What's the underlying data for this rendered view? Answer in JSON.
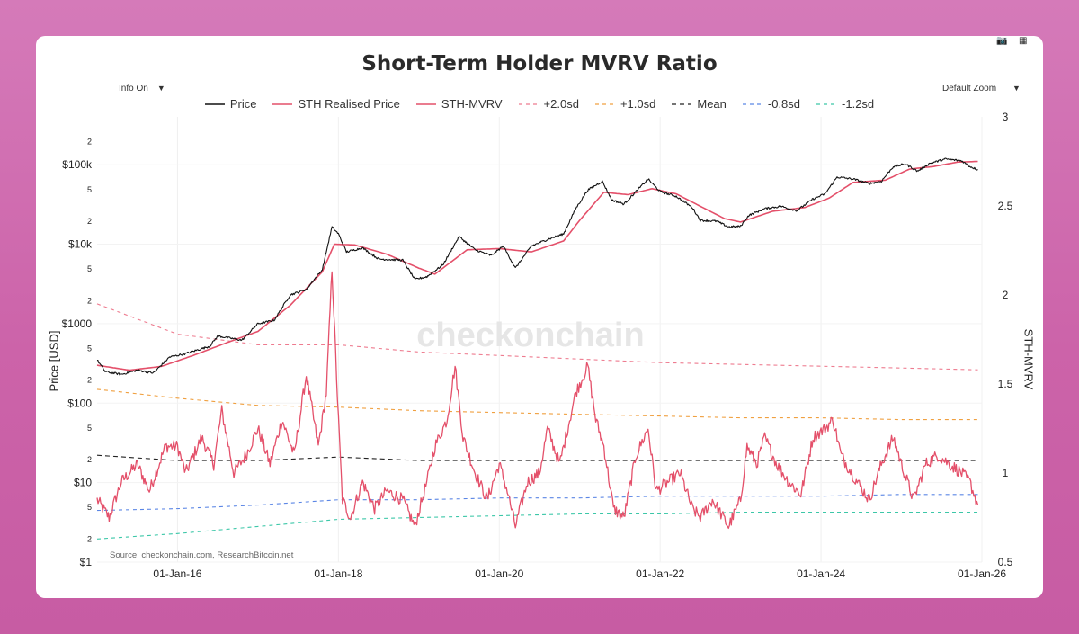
{
  "chart_data": {
    "type": "line",
    "title": "Short-Term Holder MVRV Ratio",
    "controls": {
      "info": "Info On",
      "zoom": "Default Zoom"
    },
    "left_axis": {
      "label": "Price [USD]",
      "scale": "log",
      "range": [
        1,
        400000
      ],
      "ticks": [
        {
          "v": 1,
          "t": "$1"
        },
        {
          "v": 2,
          "t": "2"
        },
        {
          "v": 5,
          "t": "5"
        },
        {
          "v": 10,
          "t": "$10"
        },
        {
          "v": 20,
          "t": "2"
        },
        {
          "v": 50,
          "t": "5"
        },
        {
          "v": 100,
          "t": "$100"
        },
        {
          "v": 200,
          "t": "2"
        },
        {
          "v": 500,
          "t": "5"
        },
        {
          "v": 1000,
          "t": "$1000"
        },
        {
          "v": 2000,
          "t": "2"
        },
        {
          "v": 5000,
          "t": "5"
        },
        {
          "v": 10000,
          "t": "$10k"
        },
        {
          "v": 20000,
          "t": "2"
        },
        {
          "v": 50000,
          "t": "5"
        },
        {
          "v": 100000,
          "t": "$100k"
        },
        {
          "v": 200000,
          "t": "2"
        }
      ]
    },
    "right_axis": {
      "label": "STH-MVRV",
      "range": [
        0.5,
        3
      ],
      "ticks": [
        {
          "v": 0.5,
          "t": "0.5"
        },
        {
          "v": 1,
          "t": "1"
        },
        {
          "v": 1.5,
          "t": "1.5"
        },
        {
          "v": 2,
          "t": "2"
        },
        {
          "v": 2.5,
          "t": "2.5"
        },
        {
          "v": 3,
          "t": "3"
        }
      ]
    },
    "x_axis": {
      "range": [
        2015.0,
        2026.0
      ],
      "ticks": [
        {
          "v": 2016,
          "t": "01-Jan-16"
        },
        {
          "v": 2018,
          "t": "01-Jan-18"
        },
        {
          "v": 2020,
          "t": "01-Jan-20"
        },
        {
          "v": 2022,
          "t": "01-Jan-22"
        },
        {
          "v": 2024,
          "t": "01-Jan-24"
        },
        {
          "v": 2026,
          "t": "01-Jan-26"
        }
      ]
    },
    "legend": [
      {
        "name": "Price",
        "color": "#111111",
        "dash": ""
      },
      {
        "name": "STH Realised Price",
        "color": "#e4506a",
        "dash": ""
      },
      {
        "name": "STH-MVRV",
        "color": "#e4506a",
        "dash": ""
      },
      {
        "name": "+2.0sd",
        "color": "#ee7b8f",
        "dash": "4,4"
      },
      {
        "name": "+1.0sd",
        "color": "#f0a040",
        "dash": "4,4"
      },
      {
        "name": "Mean",
        "color": "#222222",
        "dash": "5,4"
      },
      {
        "name": "-0.8sd",
        "color": "#5b86e5",
        "dash": "4,4"
      },
      {
        "name": "-1.2sd",
        "color": "#3cc7a8",
        "dash": "4,4"
      }
    ],
    "price_series": [
      [
        2015.0,
        350
      ],
      [
        2015.1,
        250
      ],
      [
        2015.3,
        230
      ],
      [
        2015.5,
        260
      ],
      [
        2015.7,
        240
      ],
      [
        2015.9,
        380
      ],
      [
        2016.1,
        420
      ],
      [
        2016.4,
        520
      ],
      [
        2016.5,
        700
      ],
      [
        2016.8,
        620
      ],
      [
        2017.0,
        1000
      ],
      [
        2017.2,
        1100
      ],
      [
        2017.4,
        2300
      ],
      [
        2017.6,
        2700
      ],
      [
        2017.8,
        4800
      ],
      [
        2017.92,
        16500
      ],
      [
        2018.0,
        13500
      ],
      [
        2018.1,
        8000
      ],
      [
        2018.3,
        9000
      ],
      [
        2018.5,
        6500
      ],
      [
        2018.8,
        6300
      ],
      [
        2018.95,
        3600
      ],
      [
        2019.1,
        3900
      ],
      [
        2019.3,
        5500
      ],
      [
        2019.5,
        12500
      ],
      [
        2019.7,
        8500
      ],
      [
        2019.9,
        7200
      ],
      [
        2020.05,
        9500
      ],
      [
        2020.2,
        5000
      ],
      [
        2020.4,
        9500
      ],
      [
        2020.6,
        11500
      ],
      [
        2020.8,
        13500
      ],
      [
        2020.95,
        28000
      ],
      [
        2021.1,
        48000
      ],
      [
        2021.28,
        62000
      ],
      [
        2021.4,
        36000
      ],
      [
        2021.55,
        32000
      ],
      [
        2021.7,
        46000
      ],
      [
        2021.85,
        66000
      ],
      [
        2022.0,
        46000
      ],
      [
        2022.2,
        40000
      ],
      [
        2022.4,
        29000
      ],
      [
        2022.5,
        20000
      ],
      [
        2022.7,
        19500
      ],
      [
        2022.85,
        16500
      ],
      [
        2023.0,
        16800
      ],
      [
        2023.1,
        23000
      ],
      [
        2023.3,
        28000
      ],
      [
        2023.5,
        30000
      ],
      [
        2023.7,
        26500
      ],
      [
        2023.9,
        37000
      ],
      [
        2024.05,
        43000
      ],
      [
        2024.2,
        70000
      ],
      [
        2024.4,
        66000
      ],
      [
        2024.6,
        58000
      ],
      [
        2024.75,
        62000
      ],
      [
        2024.9,
        95000
      ],
      [
        2025.05,
        102000
      ],
      [
        2025.2,
        83000
      ],
      [
        2025.35,
        104000
      ],
      [
        2025.55,
        118000
      ],
      [
        2025.75,
        112000
      ],
      [
        2025.85,
        95000
      ],
      [
        2025.95,
        87000
      ]
    ],
    "sth_realised_price_series": [
      [
        2015.0,
        300
      ],
      [
        2015.4,
        260
      ],
      [
        2015.8,
        290
      ],
      [
        2016.2,
        400
      ],
      [
        2016.6,
        570
      ],
      [
        2017.0,
        800
      ],
      [
        2017.4,
        1700
      ],
      [
        2017.8,
        4500
      ],
      [
        2017.95,
        10000
      ],
      [
        2018.2,
        9800
      ],
      [
        2018.6,
        7500
      ],
      [
        2019.0,
        5000
      ],
      [
        2019.2,
        4200
      ],
      [
        2019.6,
        8500
      ],
      [
        2020.0,
        8800
      ],
      [
        2020.4,
        8000
      ],
      [
        2020.8,
        11000
      ],
      [
        2021.0,
        20000
      ],
      [
        2021.3,
        45000
      ],
      [
        2021.6,
        42000
      ],
      [
        2021.9,
        50000
      ],
      [
        2022.2,
        43000
      ],
      [
        2022.5,
        30000
      ],
      [
        2022.8,
        21000
      ],
      [
        2023.0,
        19000
      ],
      [
        2023.4,
        26000
      ],
      [
        2023.8,
        29000
      ],
      [
        2024.1,
        38000
      ],
      [
        2024.4,
        60000
      ],
      [
        2024.8,
        64000
      ],
      [
        2025.1,
        88000
      ],
      [
        2025.4,
        95000
      ],
      [
        2025.7,
        108000
      ],
      [
        2025.95,
        110000
      ]
    ],
    "sth_mvrv_series": [
      [
        2015.0,
        0.85
      ],
      [
        2015.15,
        0.75
      ],
      [
        2015.3,
        0.95
      ],
      [
        2015.5,
        1.05
      ],
      [
        2015.65,
        0.9
      ],
      [
        2015.85,
        1.15
      ],
      [
        2016.0,
        1.15
      ],
      [
        2016.1,
        1.0
      ],
      [
        2016.3,
        1.2
      ],
      [
        2016.45,
        1.05
      ],
      [
        2016.55,
        1.35
      ],
      [
        2016.7,
        1.0
      ],
      [
        2016.85,
        1.1
      ],
      [
        2017.0,
        1.25
      ],
      [
        2017.15,
        1.05
      ],
      [
        2017.3,
        1.3
      ],
      [
        2017.45,
        1.1
      ],
      [
        2017.6,
        1.55
      ],
      [
        2017.75,
        1.15
      ],
      [
        2017.85,
        1.45
      ],
      [
        2017.92,
        2.15
      ],
      [
        2018.0,
        1.3
      ],
      [
        2018.05,
        0.85
      ],
      [
        2018.15,
        0.75
      ],
      [
        2018.3,
        0.95
      ],
      [
        2018.45,
        0.8
      ],
      [
        2018.6,
        0.9
      ],
      [
        2018.8,
        0.85
      ],
      [
        2018.95,
        0.7
      ],
      [
        2019.1,
        0.95
      ],
      [
        2019.2,
        1.15
      ],
      [
        2019.35,
        1.3
      ],
      [
        2019.45,
        1.6
      ],
      [
        2019.55,
        1.2
      ],
      [
        2019.7,
        1.0
      ],
      [
        2019.85,
        0.85
      ],
      [
        2020.0,
        1.05
      ],
      [
        2020.1,
        0.9
      ],
      [
        2020.2,
        0.7
      ],
      [
        2020.35,
        0.95
      ],
      [
        2020.5,
        1.0
      ],
      [
        2020.6,
        1.25
      ],
      [
        2020.75,
        1.05
      ],
      [
        2020.85,
        1.25
      ],
      [
        2020.95,
        1.45
      ],
      [
        2021.1,
        1.6
      ],
      [
        2021.2,
        1.3
      ],
      [
        2021.3,
        1.15
      ],
      [
        2021.42,
        0.8
      ],
      [
        2021.55,
        0.75
      ],
      [
        2021.7,
        1.1
      ],
      [
        2021.85,
        1.25
      ],
      [
        2021.95,
        0.9
      ],
      [
        2022.1,
        0.95
      ],
      [
        2022.25,
        1.0
      ],
      [
        2022.4,
        0.8
      ],
      [
        2022.5,
        0.75
      ],
      [
        2022.65,
        0.85
      ],
      [
        2022.85,
        0.7
      ],
      [
        2023.0,
        0.85
      ],
      [
        2023.08,
        1.15
      ],
      [
        2023.2,
        1.05
      ],
      [
        2023.3,
        1.2
      ],
      [
        2023.45,
        1.05
      ],
      [
        2023.6,
        0.95
      ],
      [
        2023.75,
        0.88
      ],
      [
        2023.9,
        1.2
      ],
      [
        2024.05,
        1.25
      ],
      [
        2024.15,
        1.3
      ],
      [
        2024.25,
        1.1
      ],
      [
        2024.45,
        0.95
      ],
      [
        2024.6,
        0.85
      ],
      [
        2024.75,
        1.05
      ],
      [
        2024.9,
        1.2
      ],
      [
        2025.0,
        1.05
      ],
      [
        2025.15,
        0.85
      ],
      [
        2025.3,
        1.05
      ],
      [
        2025.45,
        1.1
      ],
      [
        2025.6,
        1.05
      ],
      [
        2025.75,
        1.0
      ],
      [
        2025.85,
        0.95
      ],
      [
        2025.95,
        0.82
      ]
    ],
    "bands": {
      "+2.0sd": [
        [
          2015.0,
          1.95
        ],
        [
          2016.0,
          1.78
        ],
        [
          2017.0,
          1.72
        ],
        [
          2018.0,
          1.72
        ],
        [
          2019.0,
          1.68
        ],
        [
          2020.0,
          1.66
        ],
        [
          2021.0,
          1.64
        ],
        [
          2022.0,
          1.62
        ],
        [
          2023.0,
          1.61
        ],
        [
          2024.0,
          1.6
        ],
        [
          2025.0,
          1.59
        ],
        [
          2025.95,
          1.58
        ]
      ],
      "+1.0sd": [
        [
          2015.0,
          1.47
        ],
        [
          2016.0,
          1.42
        ],
        [
          2017.0,
          1.38
        ],
        [
          2018.0,
          1.37
        ],
        [
          2019.0,
          1.35
        ],
        [
          2020.0,
          1.34
        ],
        [
          2021.0,
          1.33
        ],
        [
          2022.0,
          1.32
        ],
        [
          2023.0,
          1.31
        ],
        [
          2024.0,
          1.31
        ],
        [
          2025.0,
          1.3
        ],
        [
          2025.95,
          1.3
        ]
      ],
      "Mean": [
        [
          2015.0,
          1.1
        ],
        [
          2016.0,
          1.07
        ],
        [
          2017.0,
          1.07
        ],
        [
          2018.0,
          1.09
        ],
        [
          2019.0,
          1.07
        ],
        [
          2020.0,
          1.07
        ],
        [
          2021.0,
          1.07
        ],
        [
          2022.0,
          1.07
        ],
        [
          2023.0,
          1.07
        ],
        [
          2024.0,
          1.07
        ],
        [
          2025.0,
          1.07
        ],
        [
          2025.95,
          1.07
        ]
      ],
      "-0.8sd": [
        [
          2015.0,
          0.79
        ],
        [
          2016.0,
          0.8
        ],
        [
          2017.0,
          0.82
        ],
        [
          2018.0,
          0.85
        ],
        [
          2019.0,
          0.85
        ],
        [
          2020.0,
          0.86
        ],
        [
          2021.0,
          0.86
        ],
        [
          2022.0,
          0.87
        ],
        [
          2023.0,
          0.87
        ],
        [
          2024.0,
          0.87
        ],
        [
          2025.0,
          0.88
        ],
        [
          2025.95,
          0.88
        ]
      ],
      "-1.2sd": [
        [
          2015.0,
          0.63
        ],
        [
          2016.0,
          0.66
        ],
        [
          2017.0,
          0.7
        ],
        [
          2018.0,
          0.74
        ],
        [
          2019.0,
          0.75
        ],
        [
          2020.0,
          0.76
        ],
        [
          2021.0,
          0.77
        ],
        [
          2022.0,
          0.77
        ],
        [
          2023.0,
          0.78
        ],
        [
          2024.0,
          0.78
        ],
        [
          2025.0,
          0.78
        ],
        [
          2025.95,
          0.78
        ]
      ]
    },
    "watermark": "checkonchain",
    "source": "Source: checkonchain.com, ResearchBitcoin.net"
  }
}
